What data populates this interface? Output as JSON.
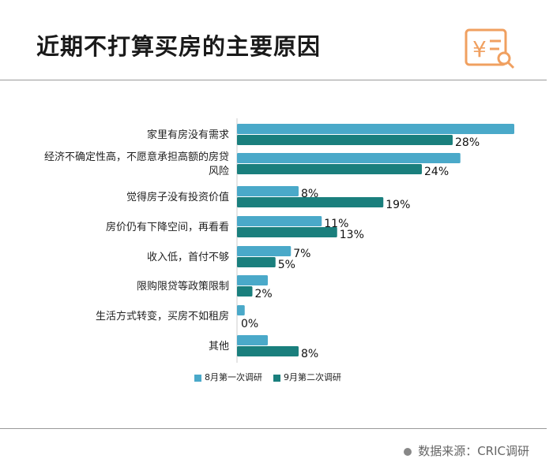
{
  "title": "近期不打算买房的主要原因",
  "source": "数据来源：CRIC调研",
  "colors": {
    "aug": "#4aa9c9",
    "sep": "#1a7f7d"
  },
  "chart_data": {
    "type": "bar",
    "orientation": "horizontal",
    "title": "近期不打算买房的主要原因",
    "categories": [
      "家里有房没有需求",
      "经济不确定性高，不愿意承担高额的房贷风险",
      "觉得房子没有投资价值",
      "房价仍有下降空间，再看看",
      "收入低，首付不够",
      "限购限贷等政策限制",
      "生活方式转变，买房不如租房",
      "其他"
    ],
    "category_lines": [
      [
        "家里有房没有需求"
      ],
      [
        "经济不确定性高，不愿意承担高额的房贷",
        "风险"
      ],
      [
        "觉得房子没有投资价值"
      ],
      [
        "房价仍有下降空间，再看看"
      ],
      [
        "收入低，首付不够"
      ],
      [
        "限购限贷等政策限制"
      ],
      [
        "生活方式转变，买房不如租房"
      ],
      [
        "其他"
      ]
    ],
    "series": [
      {
        "name": "8月第一次调研",
        "values": [
          36,
          29,
          8,
          11,
          7,
          4,
          1,
          4
        ],
        "labels": [
          null,
          null,
          "8%",
          "11%",
          "7%",
          null,
          null,
          null
        ]
      },
      {
        "name": "9月第二次调研",
        "values": [
          28,
          24,
          19,
          13,
          5,
          2,
          0,
          8
        ],
        "labels": [
          "28%",
          "24%",
          "19%",
          "13%",
          "5%",
          "2%",
          "0%",
          "8%"
        ]
      }
    ],
    "legend": "bottom-center",
    "grid": false
  }
}
